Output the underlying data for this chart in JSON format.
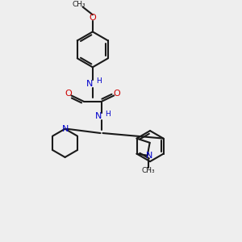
{
  "bg": "#eeeeee",
  "bc": "#1a1a1a",
  "nc": "#0000cc",
  "oc": "#cc0000",
  "lw": 1.5,
  "figsize": [
    3.0,
    3.0
  ],
  "dpi": 100,
  "xlim": [
    0,
    10
  ],
  "ylim": [
    0,
    10
  ]
}
